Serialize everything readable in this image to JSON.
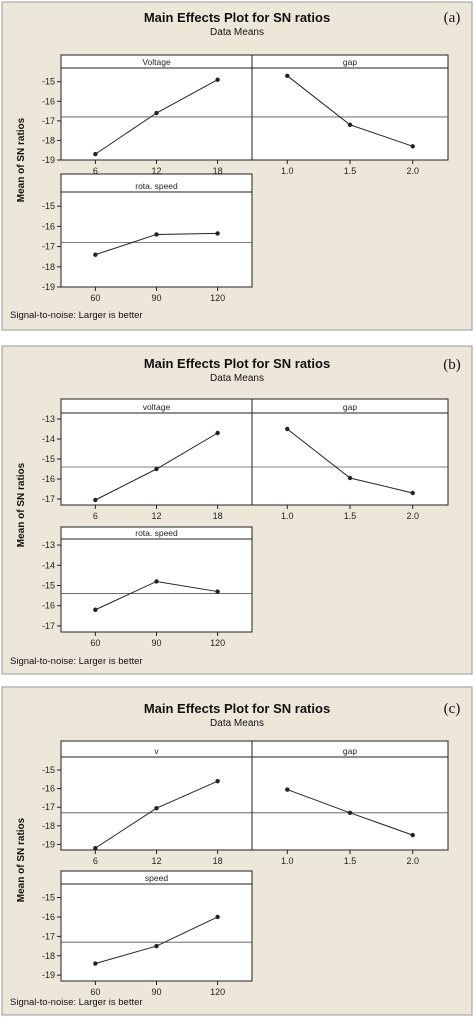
{
  "colors": {
    "background": "#ede7da",
    "panel": "#ffffff",
    "axis": "#222222",
    "line": "#222222"
  },
  "chart_data": [
    {
      "type": "line",
      "label": "(a)",
      "title": "Main Effects Plot for SN ratios",
      "subtitle": "Data Means",
      "ylabel": "Mean of SN ratios",
      "footnote": "Signal-to-noise: Larger is better",
      "ylim": [
        -19,
        -14.3
      ],
      "yticks": [
        -19,
        -18,
        -17,
        -16,
        -15
      ],
      "mean": -16.8,
      "panels": [
        {
          "name": "Voltage",
          "x": [
            "6",
            "12",
            "18"
          ],
          "values": [
            -18.7,
            -16.6,
            -14.9
          ]
        },
        {
          "name": "gap",
          "x": [
            "1.0",
            "1.5",
            "2.0"
          ],
          "values": [
            -14.7,
            -17.2,
            -18.3
          ]
        },
        {
          "name": "rota. speed",
          "x": [
            "60",
            "90",
            "120"
          ],
          "values": [
            -17.4,
            -16.4,
            -16.35
          ]
        }
      ]
    },
    {
      "type": "line",
      "label": "(b)",
      "title": "Main Effects Plot for SN ratios",
      "subtitle": "Data Means",
      "ylabel": "Mean of SN ratios",
      "footnote": "Signal-to-noise: Larger is better",
      "ylim": [
        -17.3,
        -12.7
      ],
      "yticks": [
        -17,
        -16,
        -15,
        -14,
        -13
      ],
      "mean": -15.4,
      "panels": [
        {
          "name": "voltage",
          "x": [
            "6",
            "12",
            "18"
          ],
          "values": [
            -17.05,
            -15.5,
            -13.7
          ]
        },
        {
          "name": "gap",
          "x": [
            "1.0",
            "1.5",
            "2.0"
          ],
          "values": [
            -13.5,
            -15.95,
            -16.7
          ]
        },
        {
          "name": "rota. speed",
          "x": [
            "60",
            "90",
            "120"
          ],
          "values": [
            -16.2,
            -14.8,
            -15.3
          ]
        }
      ]
    },
    {
      "type": "line",
      "label": "(c)",
      "title": "Main Effects Plot for SN ratios",
      "subtitle": "Data Means",
      "ylabel": "Mean of SN ratios",
      "footnote": "Signal-to-noise: Larger is better",
      "ylim": [
        -19.3,
        -14.3
      ],
      "yticks": [
        -19,
        -18,
        -17,
        -16,
        -15
      ],
      "mean": -17.3,
      "panels": [
        {
          "name": "v",
          "x": [
            "6",
            "12",
            "18"
          ],
          "values": [
            -19.2,
            -17.05,
            -15.6
          ]
        },
        {
          "name": "gap",
          "x": [
            "1.0",
            "1.5",
            "2.0"
          ],
          "values": [
            -16.05,
            -17.3,
            -18.5
          ]
        },
        {
          "name": "speed",
          "x": [
            "60",
            "90",
            "120"
          ],
          "values": [
            -18.4,
            -17.5,
            -16.0
          ]
        }
      ]
    }
  ]
}
